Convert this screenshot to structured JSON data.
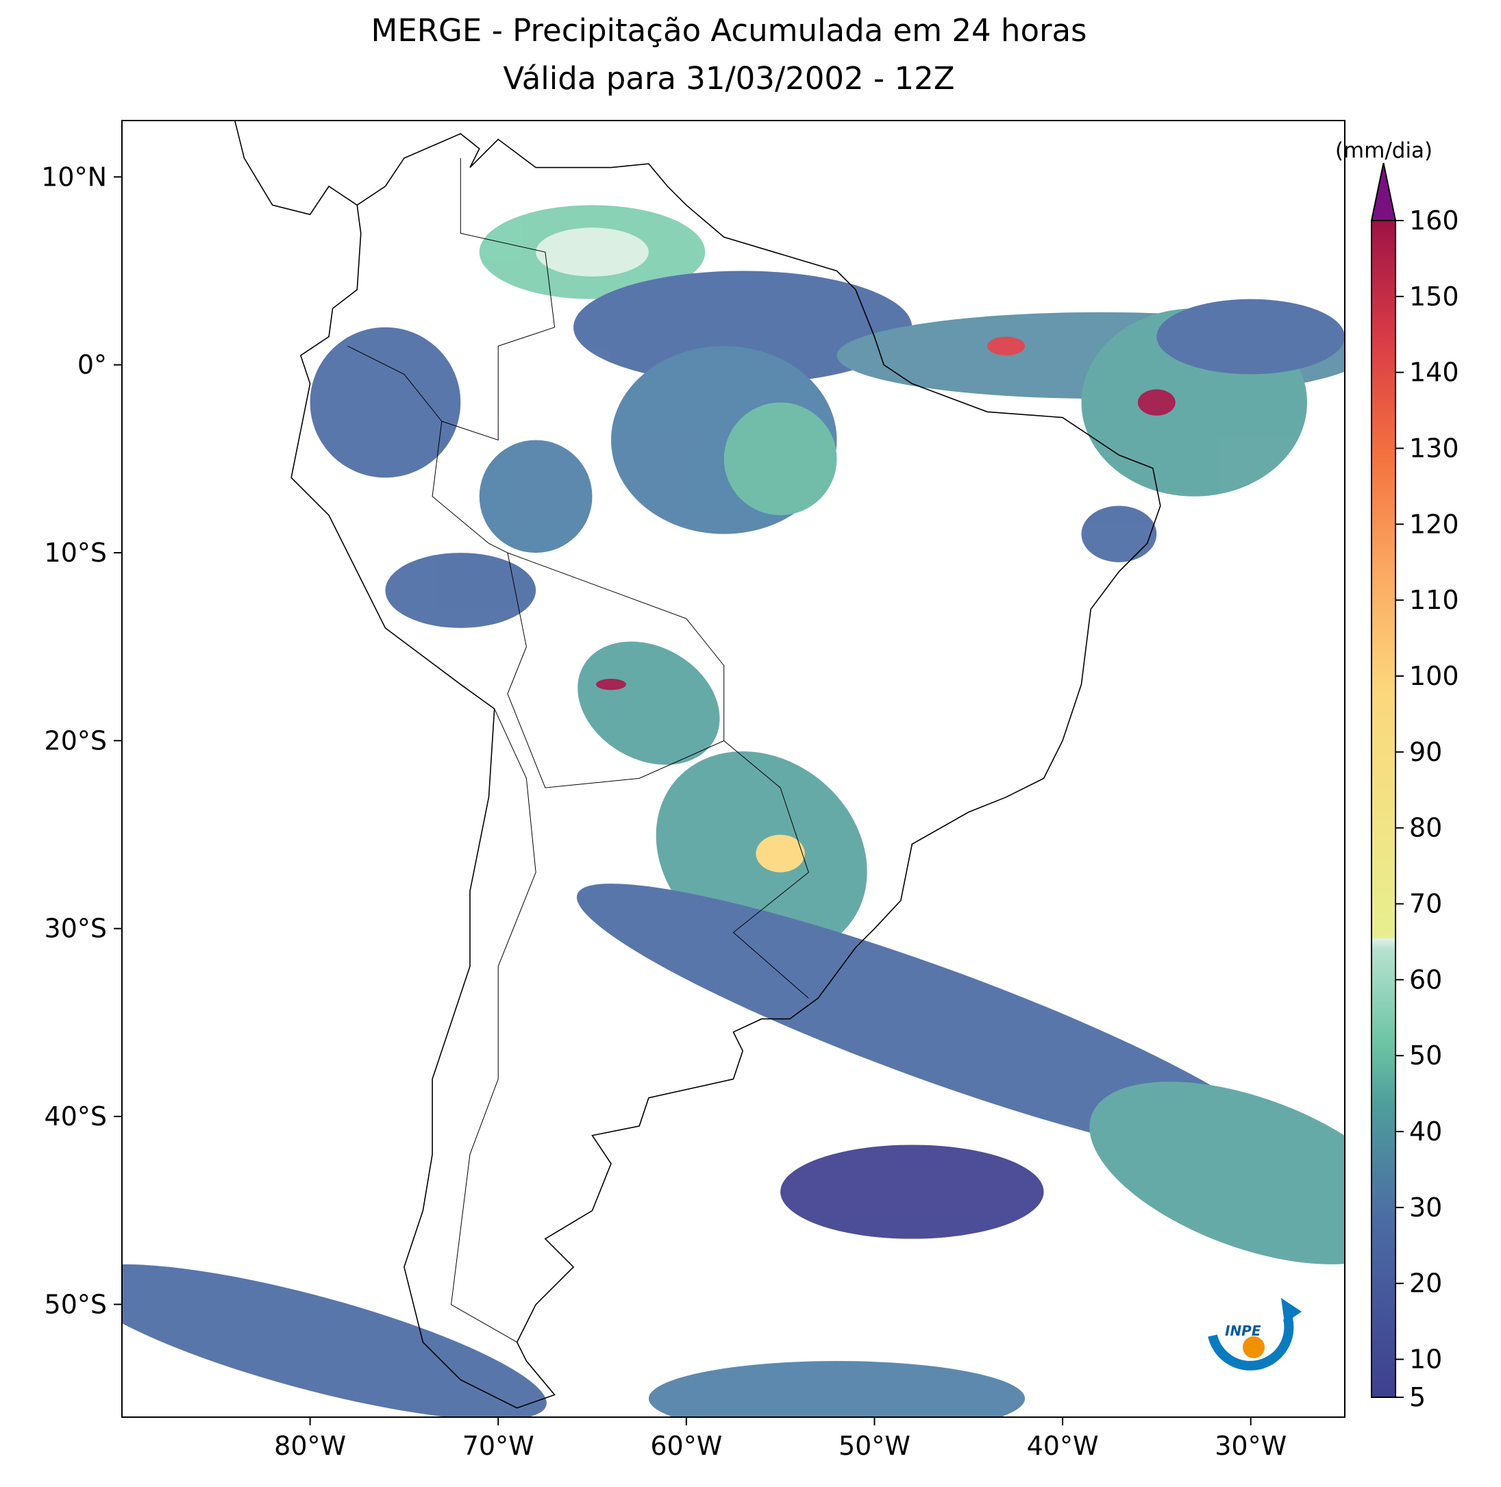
{
  "chart_data": {
    "type": "map",
    "title": "MERGE - Precipitação Acumulada em 24 horas",
    "subtitle": "Válida para 31/03/2002 - 12Z",
    "xlim": [
      -90,
      -25
    ],
    "ylim": [
      -56,
      13
    ],
    "xticks": [
      {
        "value": -80,
        "label": "80°W"
      },
      {
        "value": -70,
        "label": "70°W"
      },
      {
        "value": -60,
        "label": "60°W"
      },
      {
        "value": -50,
        "label": "50°W"
      },
      {
        "value": -40,
        "label": "40°W"
      },
      {
        "value": -30,
        "label": "30°W"
      }
    ],
    "yticks": [
      {
        "value": 10,
        "label": "10°N"
      },
      {
        "value": 0,
        "label": "0°"
      },
      {
        "value": -10,
        "label": "10°S"
      },
      {
        "value": -20,
        "label": "20°S"
      },
      {
        "value": -30,
        "label": "30°S"
      },
      {
        "value": -40,
        "label": "40°S"
      },
      {
        "value": -50,
        "label": "50°S"
      }
    ],
    "colorbar": {
      "label": "(mm/dia)",
      "lim": [
        5,
        160
      ],
      "ticks": [
        5,
        10,
        20,
        30,
        40,
        50,
        60,
        70,
        80,
        90,
        100,
        110,
        120,
        130,
        140,
        150,
        160
      ]
    },
    "logo": "INPE"
  }
}
